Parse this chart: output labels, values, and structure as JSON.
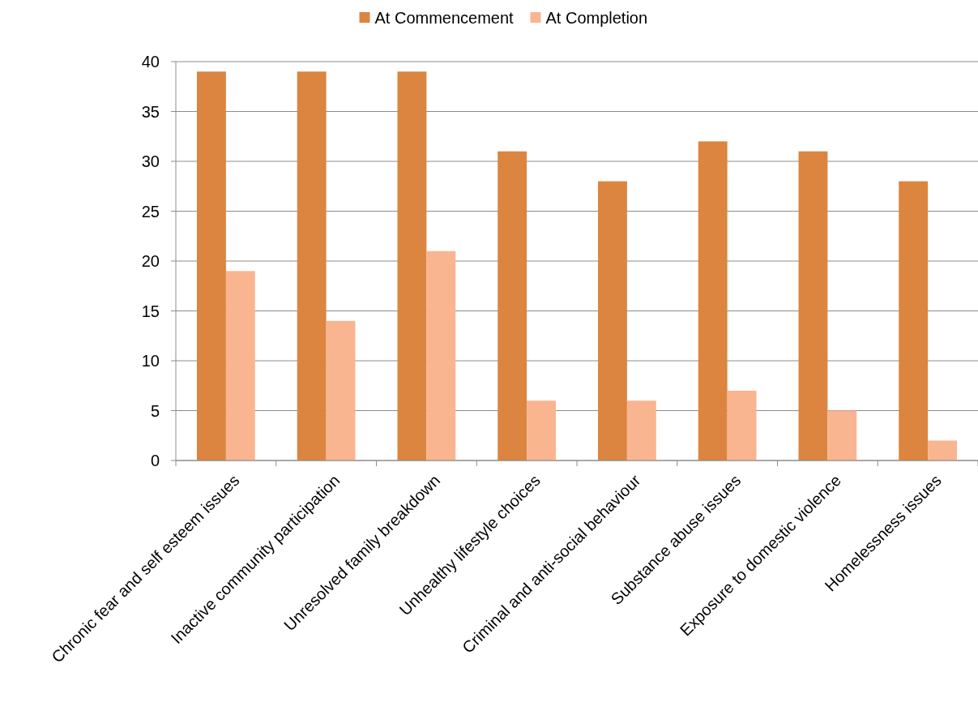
{
  "chart_data": {
    "type": "bar",
    "categories": [
      "Chronic fear and self esteem issues",
      "Inactive community participation",
      "Unresolved family breakdown",
      "Unhealthy lifestyle choices",
      "Criminal and anti-social behaviour",
      "Substance abuse issues",
      "Exposure to domestic violence",
      "Homelessness issues"
    ],
    "series": [
      {
        "name": "At Commencement",
        "color": "#db8540",
        "values": [
          39,
          39,
          39,
          31,
          28,
          32,
          31,
          28
        ]
      },
      {
        "name": "At Completion",
        "color": "#f9b590",
        "values": [
          19,
          14,
          21,
          6,
          6,
          7,
          5,
          2
        ]
      }
    ],
    "ylim": [
      0,
      40
    ],
    "yticks": [
      0,
      5,
      10,
      15,
      20,
      25,
      30,
      35,
      40
    ],
    "grid": "y",
    "legend": "top"
  }
}
